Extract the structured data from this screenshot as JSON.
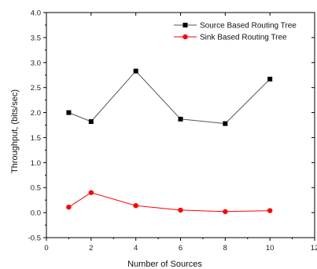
{
  "chart_data": {
    "type": "line",
    "title": "",
    "xlabel": "Number of Sources",
    "ylabel": "Throughput, (bits/sec)",
    "xlim": [
      0,
      12
    ],
    "ylim": [
      -0.5,
      4.0
    ],
    "x_ticks": [
      0,
      2,
      4,
      6,
      8,
      10,
      12
    ],
    "y_ticks": [
      -0.5,
      0.0,
      0.5,
      1.0,
      1.5,
      2.0,
      2.5,
      3.0,
      3.5,
      4.0
    ],
    "x_tick_labels": [
      "0",
      "2",
      "4",
      "6",
      "8",
      "10",
      "12"
    ],
    "y_tick_labels": [
      "-0.5",
      "0.0",
      "0.5",
      "1.0",
      "1.5",
      "2.0",
      "2.5",
      "3.0",
      "3.5",
      "4.0"
    ],
    "grid": false,
    "legend_position": "top-right",
    "series": [
      {
        "name": "Source Based Routing Tree",
        "marker": "square",
        "color": "#000000",
        "line_color": "#555555",
        "x": [
          1,
          2,
          4,
          6,
          8,
          10
        ],
        "y": [
          2.0,
          1.82,
          2.83,
          1.87,
          1.78,
          2.67
        ]
      },
      {
        "name": "Sink Based Routing Tree",
        "marker": "circle",
        "color": "#ff0000",
        "line_color": "#ff0000",
        "x": [
          1,
          2,
          4,
          6,
          8,
          10
        ],
        "y": [
          0.11,
          0.4,
          0.14,
          0.05,
          0.02,
          0.04
        ]
      }
    ]
  }
}
